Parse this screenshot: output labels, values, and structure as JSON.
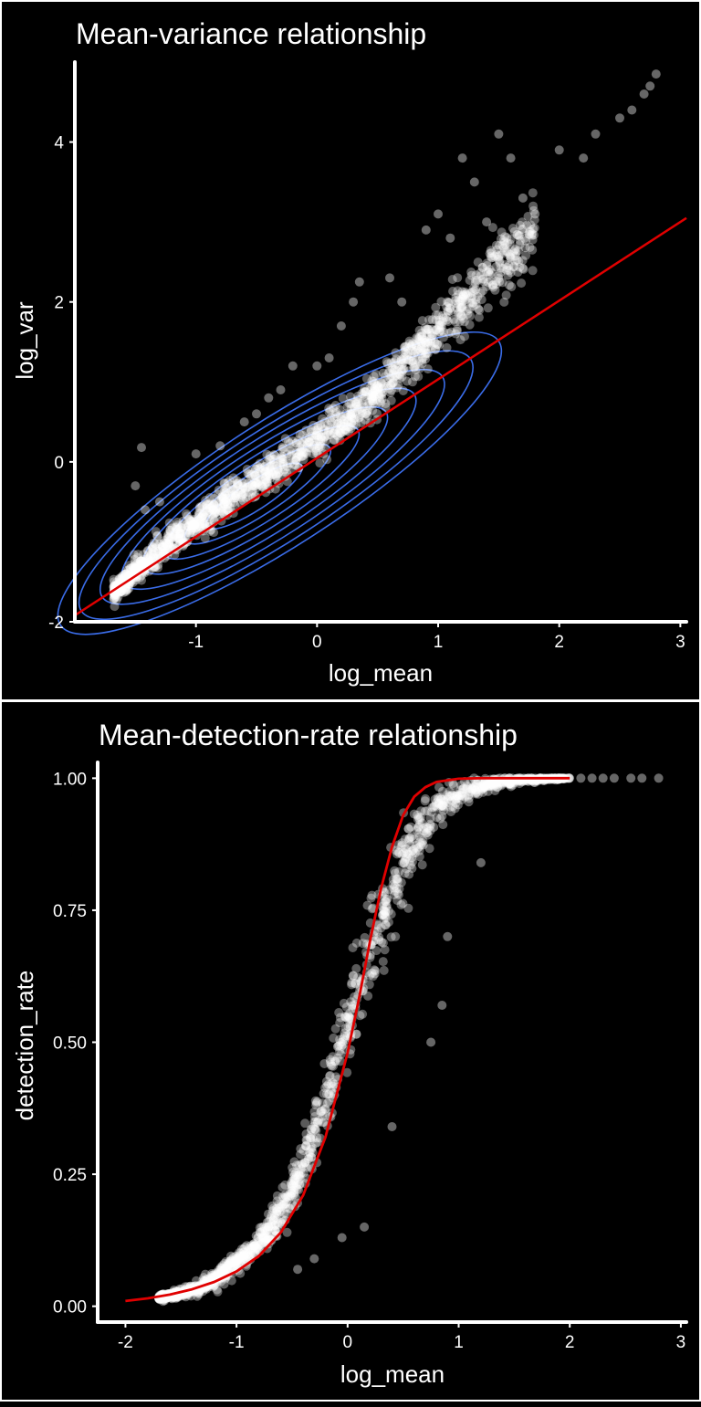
{
  "colors": {
    "background": "#000000",
    "foreground": "#ffffff",
    "points": "#ffffff",
    "fit_line": "#e00000",
    "density_contours": "#3a6ce8",
    "panel_border": "#ffffff"
  },
  "chart_data": [
    {
      "type": "scatter",
      "title": "Mean-variance relationship",
      "xlabel": "log_mean",
      "ylabel": "log_var",
      "xlim": [
        -2.0,
        3.05
      ],
      "ylim": [
        -2,
        5.0
      ],
      "xticks": [
        "-1",
        "0",
        "1",
        "2",
        "3"
      ],
      "xtick_values": [
        -1,
        0,
        1,
        2,
        3
      ],
      "yticks": [
        "-2",
        "0",
        "2",
        "4"
      ],
      "ytick_values": [
        -2,
        0,
        2,
        4
      ],
      "grid": false,
      "legend": "none",
      "point_alpha": 0.35,
      "series": [
        {
          "kind": "points",
          "x": [
            -1.68,
            -1.62,
            -1.55,
            -1.48,
            -1.4,
            -1.3,
            -1.2,
            -1.1,
            -1.0,
            -0.9,
            -0.8,
            -0.7,
            -0.6,
            -0.5,
            -0.4,
            -0.3,
            -0.2,
            -0.1,
            0.0,
            0.1,
            0.2,
            0.3,
            0.4,
            0.5,
            0.6,
            0.7,
            0.8,
            0.9,
            1.0,
            1.1,
            1.2,
            1.3,
            1.4,
            1.5,
            1.6,
            1.7,
            1.8
          ],
          "y": [
            -1.62,
            -1.55,
            -1.45,
            -1.35,
            -1.25,
            -1.12,
            -1.0,
            -0.9,
            -0.78,
            -0.68,
            -0.56,
            -0.45,
            -0.36,
            -0.24,
            -0.14,
            -0.02,
            0.08,
            0.18,
            0.28,
            0.38,
            0.5,
            0.62,
            0.75,
            0.88,
            1.02,
            1.18,
            1.33,
            1.5,
            1.66,
            1.82,
            1.98,
            2.15,
            2.3,
            2.45,
            2.6,
            2.75,
            2.9
          ],
          "spread": [
            0.1,
            0.12,
            0.13,
            0.15,
            0.16,
            0.17,
            0.18,
            0.18,
            0.19,
            0.19,
            0.2,
            0.2,
            0.2,
            0.2,
            0.2,
            0.2,
            0.2,
            0.2,
            0.2,
            0.21,
            0.21,
            0.21,
            0.22,
            0.22,
            0.22,
            0.23,
            0.24,
            0.25,
            0.26,
            0.28,
            0.3,
            0.32,
            0.34,
            0.36,
            0.38,
            0.4,
            0.42
          ]
        },
        {
          "kind": "outlier_points",
          "x": [
            -1.45,
            -1.5,
            -1.42,
            -1.3,
            -1.0,
            -0.8,
            -0.6,
            -0.5,
            -0.4,
            -0.3,
            -0.2,
            0.0,
            0.1,
            0.2,
            0.3,
            0.35,
            0.6,
            0.7,
            0.9,
            1.0,
            1.1,
            1.2,
            1.3,
            1.4,
            1.5,
            1.6,
            1.7,
            1.8,
            2.0,
            2.2,
            2.3,
            2.5,
            2.6,
            2.7,
            2.75,
            2.8
          ],
          "y": [
            0.18,
            -0.3,
            -0.6,
            -0.5,
            0.1,
            0.2,
            0.5,
            0.6,
            0.8,
            0.9,
            1.2,
            1.2,
            1.3,
            1.7,
            2.0,
            2.25,
            2.3,
            2.0,
            2.9,
            3.1,
            2.8,
            3.8,
            3.5,
            3.0,
            4.1,
            3.8,
            3.3,
            3.1,
            3.9,
            3.8,
            4.1,
            4.3,
            4.4,
            4.6,
            4.7,
            4.85
          ]
        },
        {
          "kind": "red_line",
          "x": [
            -2.0,
            3.05
          ],
          "y": [
            -1.92,
            3.05
          ]
        },
        {
          "kind": "density_contours",
          "center": [
            -0.55,
            -0.45
          ],
          "levels": 8
        }
      ]
    },
    {
      "type": "scatter",
      "title": "Mean-detection-rate relationship",
      "xlabel": "log_mean",
      "ylabel": "detection_rate",
      "xlim": [
        -2.25,
        3.05
      ],
      "ylim": [
        -0.03,
        1.03
      ],
      "xticks": [
        "-2",
        "-1",
        "0",
        "1",
        "2",
        "3"
      ],
      "xtick_values": [
        -2,
        -1,
        0,
        1,
        2,
        3
      ],
      "yticks": [
        "0.00",
        "0.25",
        "0.50",
        "0.75",
        "1.00"
      ],
      "ytick_values": [
        0.0,
        0.25,
        0.5,
        0.75,
        1.0
      ],
      "grid": false,
      "legend": "none",
      "point_alpha": 0.35,
      "series": [
        {
          "kind": "points",
          "x": [
            -1.7,
            -1.6,
            -1.5,
            -1.4,
            -1.3,
            -1.2,
            -1.1,
            -1.0,
            -0.9,
            -0.8,
            -0.7,
            -0.6,
            -0.5,
            -0.4,
            -0.3,
            -0.2,
            -0.1,
            0.0,
            0.1,
            0.2,
            0.3,
            0.4,
            0.5,
            0.6,
            0.7,
            0.8,
            0.9,
            1.0,
            1.2,
            1.4,
            1.6,
            1.8,
            2.0
          ],
          "y": [
            0.017,
            0.02,
            0.025,
            0.03,
            0.04,
            0.05,
            0.065,
            0.08,
            0.1,
            0.12,
            0.15,
            0.18,
            0.22,
            0.27,
            0.33,
            0.39,
            0.46,
            0.53,
            0.6,
            0.67,
            0.73,
            0.79,
            0.84,
            0.88,
            0.91,
            0.94,
            0.96,
            0.97,
            0.985,
            0.993,
            0.997,
            0.999,
            1.0
          ],
          "spread": [
            0.004,
            0.006,
            0.008,
            0.01,
            0.012,
            0.014,
            0.016,
            0.018,
            0.02,
            0.025,
            0.03,
            0.035,
            0.04,
            0.045,
            0.05,
            0.055,
            0.06,
            0.065,
            0.07,
            0.07,
            0.07,
            0.065,
            0.06,
            0.055,
            0.05,
            0.04,
            0.03,
            0.025,
            0.015,
            0.01,
            0.005,
            0.003,
            0.001
          ]
        },
        {
          "kind": "outlier_points",
          "x": [
            -0.45,
            -0.3,
            -0.05,
            0.15,
            0.4,
            0.75,
            0.85,
            0.9,
            1.2,
            2.1,
            2.2,
            2.3,
            2.4,
            2.55,
            2.65,
            2.8
          ],
          "y": [
            0.07,
            0.09,
            0.13,
            0.15,
            0.34,
            0.5,
            0.57,
            0.7,
            0.84,
            1.0,
            1.0,
            1.0,
            1.0,
            1.0,
            1.0,
            1.0
          ]
        },
        {
          "kind": "red_curve",
          "x": [
            -2.0,
            -1.8,
            -1.6,
            -1.4,
            -1.2,
            -1.0,
            -0.8,
            -0.6,
            -0.4,
            -0.2,
            0.0,
            0.1,
            0.2,
            0.3,
            0.4,
            0.5,
            0.6,
            0.7,
            0.8,
            1.0,
            1.2,
            1.5,
            2.0
          ],
          "y": [
            0.01,
            0.015,
            0.022,
            0.032,
            0.046,
            0.066,
            0.095,
            0.14,
            0.21,
            0.32,
            0.48,
            0.58,
            0.69,
            0.79,
            0.87,
            0.93,
            0.965,
            0.983,
            0.993,
            0.999,
            1.0,
            1.0,
            1.0
          ]
        }
      ]
    }
  ]
}
